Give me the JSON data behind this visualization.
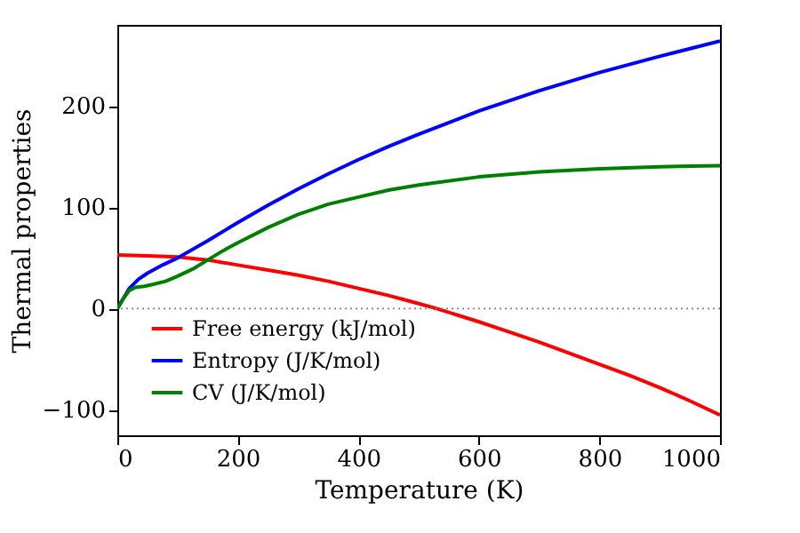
{
  "chart_data": {
    "type": "line",
    "xlabel": "Temperature (K)",
    "ylabel": "Thermal properties",
    "xlim": [
      0,
      1000
    ],
    "xticks": [
      0,
      200,
      400,
      600,
      800,
      1000
    ],
    "ylim": [
      -125,
      280
    ],
    "yticks": [
      -100,
      0,
      100,
      200
    ],
    "grid": false,
    "legend": "bottom left",
    "marker": "none",
    "line_style": "solid",
    "ref_lines": [
      {
        "axis": "y",
        "value": 0,
        "color": "#808080",
        "line_style": "dotted"
      }
    ],
    "series": [
      {
        "name": "Free energy (kJ/mol)",
        "color": "#ff0000",
        "x": [
          0,
          50,
          100,
          150,
          200,
          250,
          300,
          350,
          400,
          450,
          500,
          530,
          600,
          650,
          700,
          750,
          800,
          850,
          900,
          950,
          1000
        ],
        "values": [
          53,
          52,
          51,
          48,
          43,
          38,
          33,
          27,
          20,
          13,
          5,
          0,
          -13,
          -23,
          -33,
          -44,
          -55,
          -66,
          -78,
          -91,
          -105
        ]
      },
      {
        "name": "Entropy (J/K/mol)",
        "color": "#0000ff",
        "x": [
          0,
          10,
          20,
          35,
          50,
          75,
          100,
          150,
          200,
          250,
          300,
          350,
          400,
          450,
          500,
          600,
          700,
          800,
          900,
          1000
        ],
        "values": [
          0,
          10,
          20,
          29,
          35,
          43,
          50,
          67,
          85,
          102,
          118,
          133,
          147,
          160,
          172,
          195,
          215,
          233,
          249,
          264
        ]
      },
      {
        "name": "CV (J/K/mol)",
        "color": "#008000",
        "x": [
          0,
          10,
          20,
          30,
          45,
          60,
          80,
          100,
          125,
          150,
          175,
          200,
          250,
          300,
          350,
          400,
          450,
          500,
          600,
          700,
          800,
          900,
          1000
        ],
        "values": [
          0,
          10,
          18,
          21,
          22,
          24,
          27,
          32,
          39,
          48,
          57,
          65,
          80,
          93,
          103,
          110,
          117,
          122,
          130,
          135,
          138,
          140,
          141
        ]
      }
    ]
  }
}
